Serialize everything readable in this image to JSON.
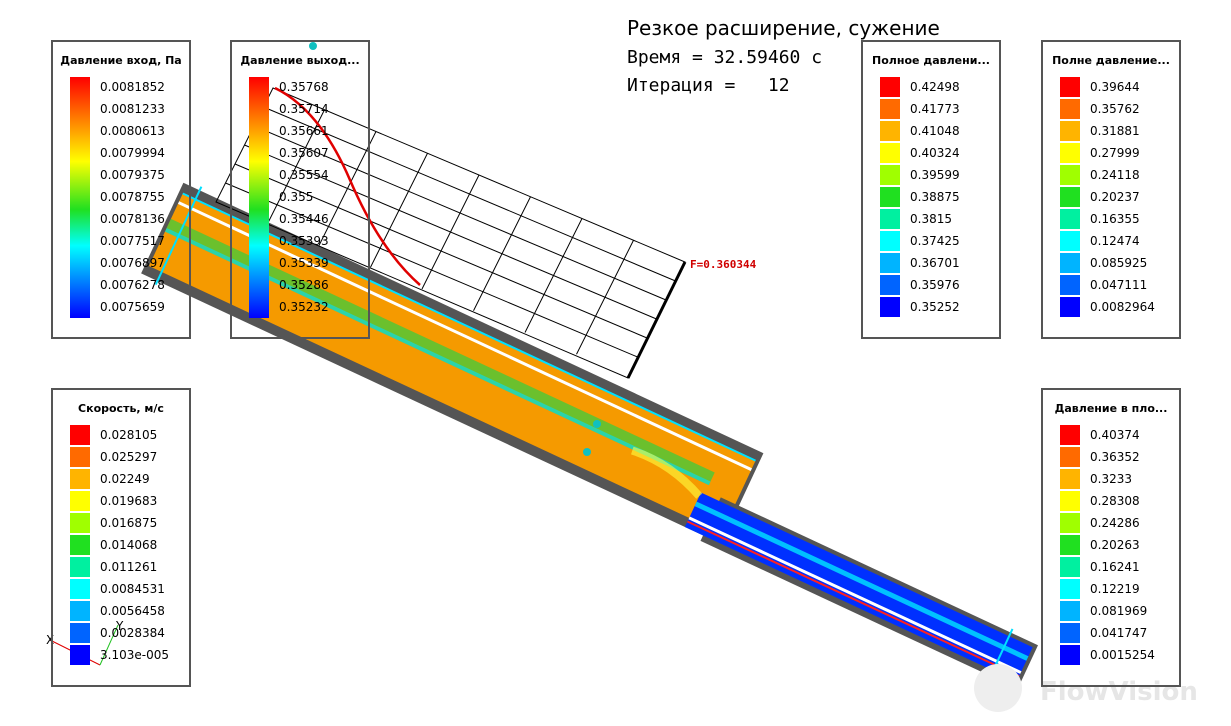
{
  "header": {
    "title": "Резкое расширение, сужение",
    "time": "Время = 32.59460 с",
    "iteration": "Итерация =   12"
  },
  "probe_label": "F=0.360344",
  "axes": {
    "x": "X",
    "y": "Y"
  },
  "logo": "FlowVision",
  "palette": [
    "#ff0000",
    "#ff6a00",
    "#ffb400",
    "#ffff00",
    "#a0ff00",
    "#20e020",
    "#00f0a0",
    "#00ffff",
    "#00b4ff",
    "#0064ff",
    "#0000ff"
  ],
  "legends": [
    {
      "title": "Давление вход, Па",
      "style": "gradient",
      "values": [
        "0.0081852",
        "0.0081233",
        "0.0080613",
        "0.0079994",
        "0.0079375",
        "0.0078755",
        "0.0078136",
        "0.0077517",
        "0.0076897",
        "0.0076278",
        "0.0075659"
      ]
    },
    {
      "title": "Давление выход...",
      "style": "gradient",
      "values": [
        "0.35768",
        "0.35714",
        "0.35661",
        "0.35607",
        "0.35554",
        "0.355",
        "0.35446",
        "0.35393",
        "0.35339",
        "0.35286",
        "0.35232"
      ]
    },
    {
      "title": "Полное давлени...",
      "style": "steps",
      "values": [
        "0.42498",
        "0.41773",
        "0.41048",
        "0.40324",
        "0.39599",
        "0.38875",
        "0.3815",
        "0.37425",
        "0.36701",
        "0.35976",
        "0.35252"
      ]
    },
    {
      "title": "Полне давление...",
      "style": "steps",
      "values": [
        "0.39644",
        "0.35762",
        "0.31881",
        "0.27999",
        "0.24118",
        "0.20237",
        "0.16355",
        "0.12474",
        "0.085925",
        "0.047111",
        "0.0082964"
      ]
    },
    {
      "title": "Скорость, м/с",
      "style": "steps",
      "values": [
        "0.028105",
        "0.025297",
        "0.02249",
        "0.019683",
        "0.016875",
        "0.014068",
        "0.011261",
        "0.0084531",
        "0.0056458",
        "0.0028384",
        "3.103e-005"
      ]
    },
    {
      "title": "Давление в пло...",
      "style": "steps",
      "values": [
        "0.40374",
        "0.36352",
        "0.3233",
        "0.28308",
        "0.24286",
        "0.20263",
        "0.16241",
        "0.12219",
        "0.081969",
        "0.041747",
        "0.0015254"
      ]
    }
  ]
}
